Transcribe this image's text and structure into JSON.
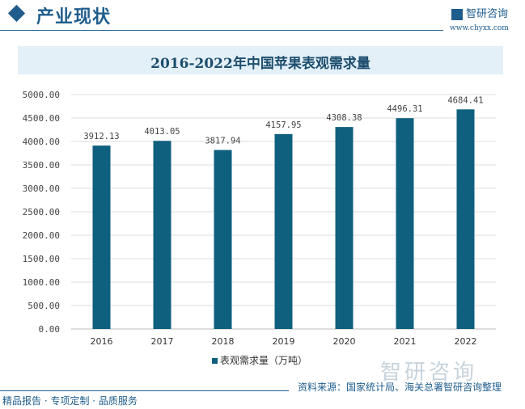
{
  "header": {
    "section_title": "产业现状",
    "logo_text": "智研咨询",
    "url": "www.chyxx.com"
  },
  "chart_data": {
    "type": "bar",
    "title": "2016-2022年中国苹果表观需求量",
    "categories": [
      "2016",
      "2017",
      "2018",
      "2019",
      "2020",
      "2021",
      "2022"
    ],
    "series": [
      {
        "name": "表观需求量（万吨）",
        "values": [
          3912.13,
          4013.05,
          3817.94,
          4157.95,
          4308.38,
          4496.31,
          4684.41
        ],
        "color": "#0f5f7e"
      }
    ],
    "data_labels": [
      "3912.13",
      "4013.05",
      "3817.94",
      "4157.95",
      "4308.38",
      "4496.31",
      "4684.41"
    ],
    "yticks": [
      "0.00",
      "500.00",
      "1000.00",
      "1500.00",
      "2000.00",
      "2500.00",
      "3000.00",
      "3500.00",
      "4000.00",
      "4500.00",
      "5000.00"
    ],
    "ylim": [
      0,
      5000
    ],
    "grid": true,
    "legend": "bottom"
  },
  "footer": {
    "source": "资料来源：国家统计局、海关总署智研咨询整理",
    "slogan": "精品报告 · 专项定制 · 品质服务",
    "watermark": "智研咨询"
  }
}
